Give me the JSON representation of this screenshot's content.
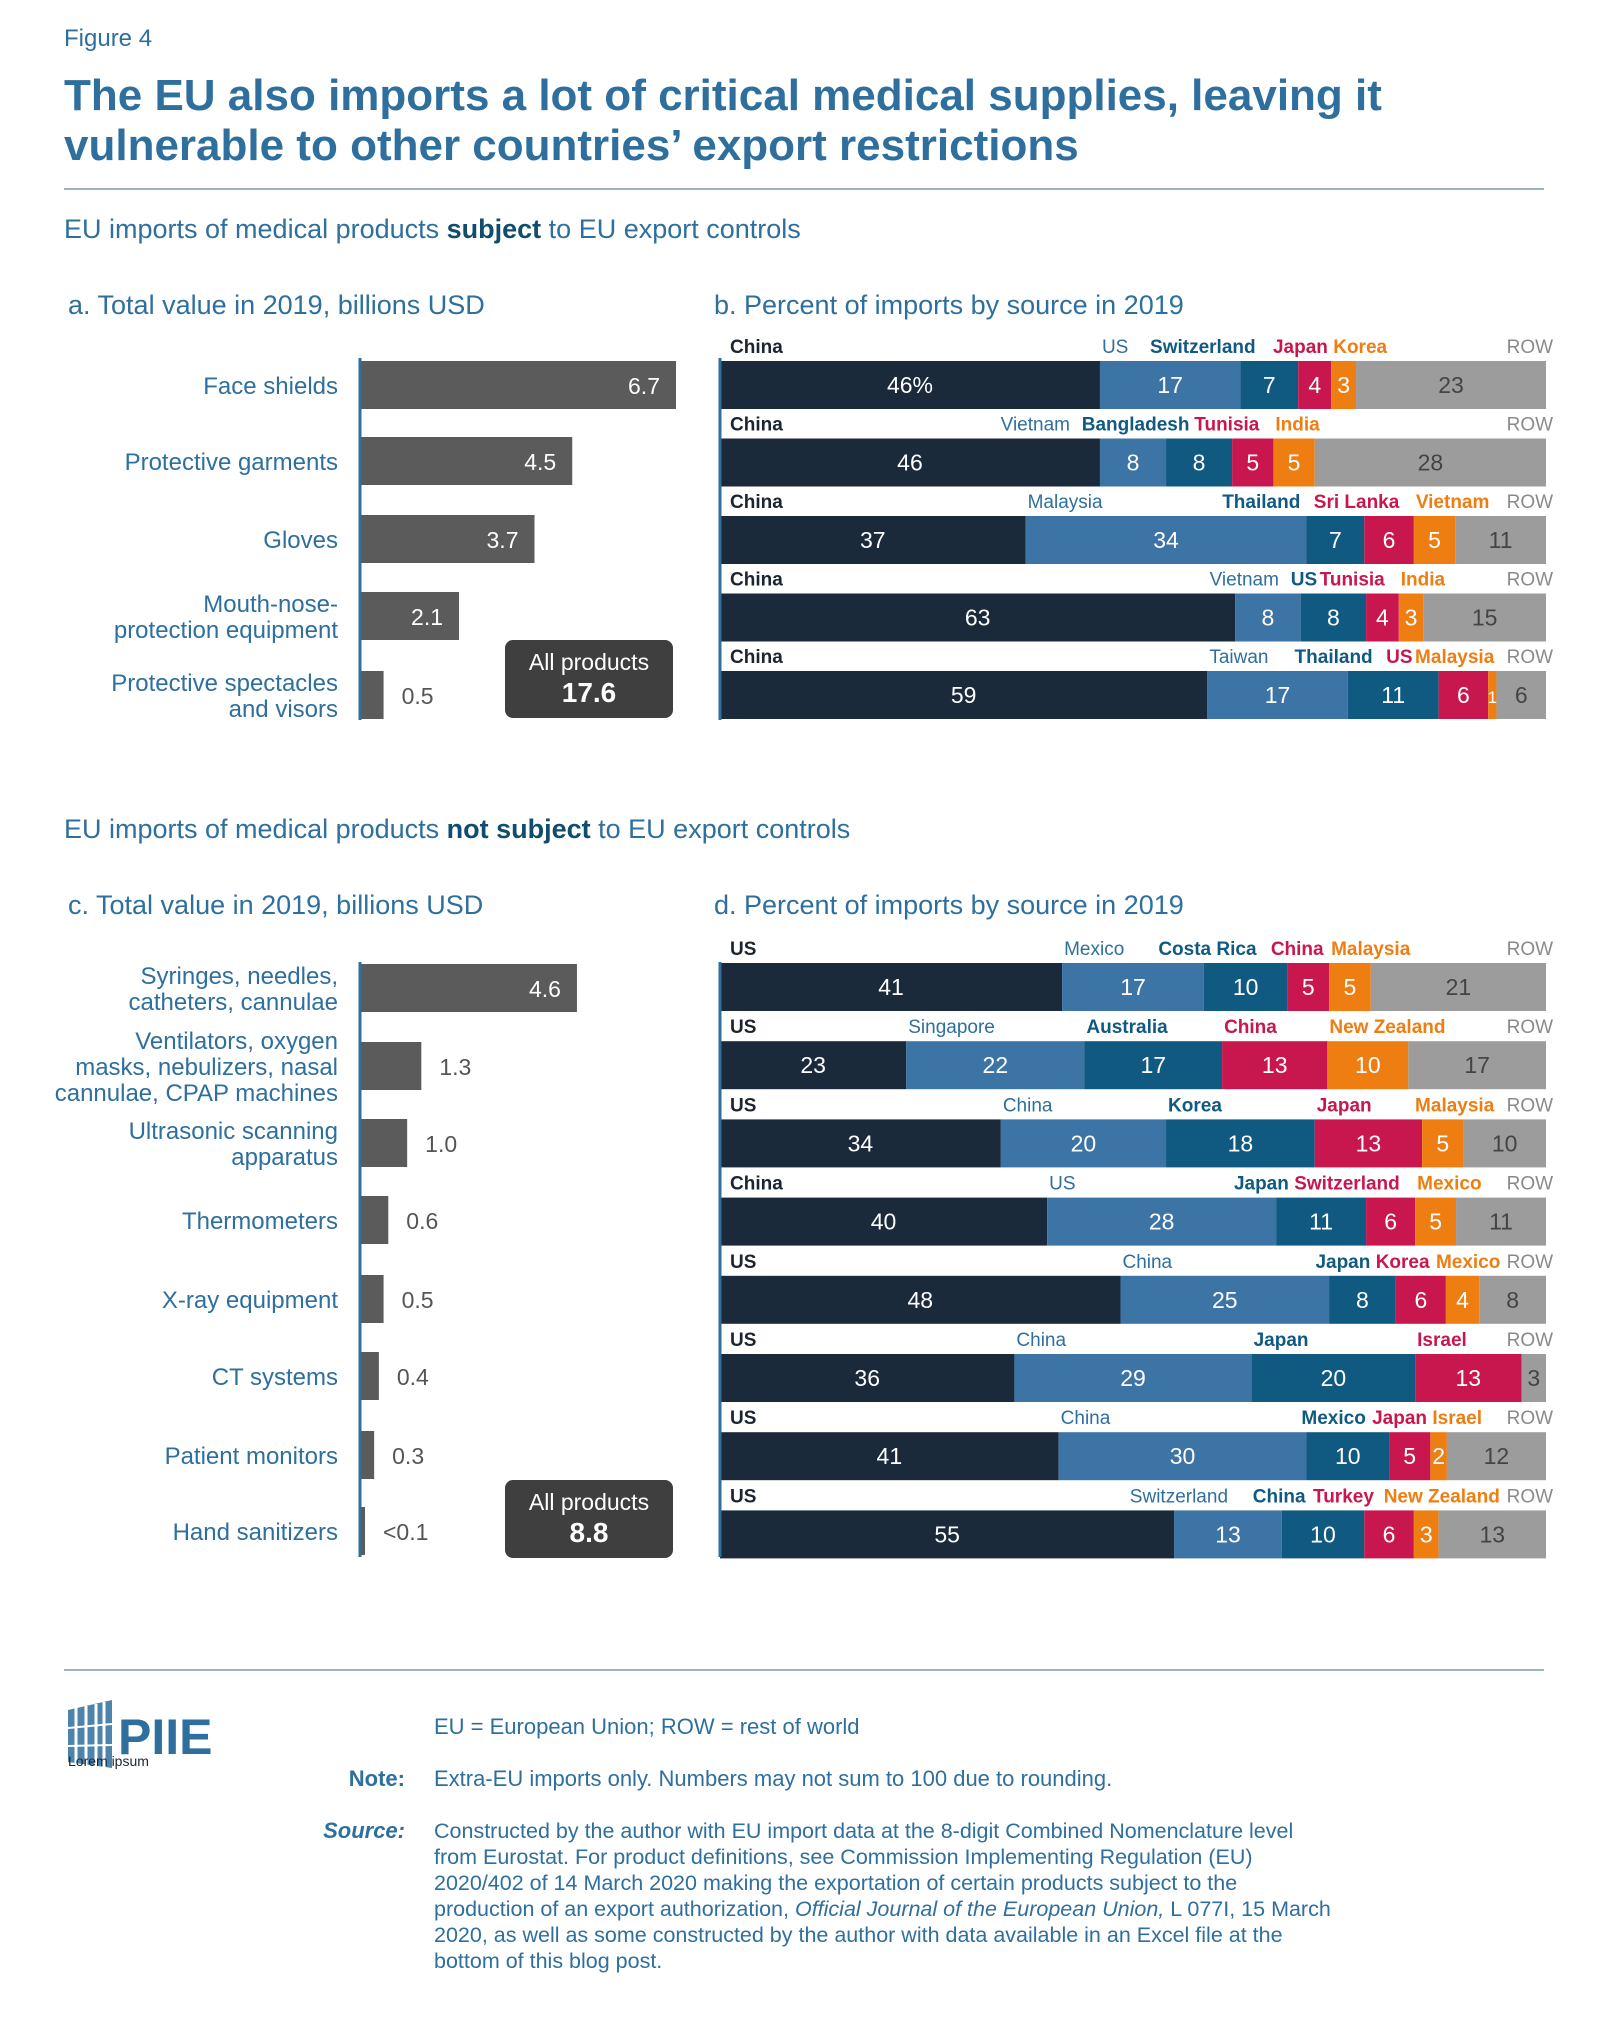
{
  "figure_label": "Figure 4",
  "title_line1": "The EU also imports a lot of critical medical supplies, leaving it",
  "title_line2": "vulnerable to other countries’ export restrictions",
  "colors": {
    "title": "#2e6f9e",
    "heading": "#2e6f9e",
    "bold_heading": "#0f4c6e",
    "bar_gray": "#5b5b5b",
    "total_box": "#3f3f3f",
    "axis": "#2e6f9e",
    "rule": "#9db3c6",
    "text_dark": "#1b2430",
    "grey_text": "#555555"
  },
  "segment_colors": [
    "#1b2a3a",
    "#3d74a6",
    "#105a82",
    "#c8174f",
    "#ee7e12",
    "#9c9c9c"
  ],
  "segment_label_colors": [
    "#1b2430",
    "#2e6f9e",
    "#105a82",
    "#c8174f",
    "#ee7e12",
    "#8a8a8a"
  ],
  "section1": {
    "heading_pre": "EU imports of medical products ",
    "heading_bold": "subject",
    "heading_post": " to EU export controls"
  },
  "section2": {
    "heading_pre": "EU imports of medical products ",
    "heading_bold": "not subject",
    "heading_post": " to EU export controls"
  },
  "logo": {
    "text": "PIIE",
    "tagline": "Lorem ipsum"
  },
  "notes": {
    "abbrev": "EU = European Union; ROW = rest of world",
    "note_label": "Note:",
    "note_text": "Extra-EU imports only. Numbers may not sum to 100 due to rounding.",
    "source_label": "Source:",
    "source_lines": [
      "Constructed by the author with EU import data at the 8-digit Combined Nomenclature level",
      "from Eurostat. For product definitions, see Commission Implementing Regulation (EU)",
      "2020/402 of 14 March 2020 making the exportation of certain products subject to the",
      "production of an export authorization, ",
      "2020, as well as some constructed by the author with data available in an Excel file at the",
      "bottom of this blog post."
    ],
    "source_italic": "Official Journal of the European Union,",
    "source_after_italic": " L 077I, 15 March"
  },
  "chart_data": [
    {
      "id": "a",
      "type": "bar",
      "orientation": "horizontal",
      "title": "a. Total value in 2019, billions USD",
      "categories": [
        [
          "Face shields"
        ],
        [
          "Protective garments"
        ],
        [
          "Gloves"
        ],
        [
          "Mouth-nose-",
          "protection equipment"
        ],
        [
          "Protective spectacles",
          "and visors"
        ]
      ],
      "values": [
        6.7,
        4.5,
        3.7,
        2.1,
        0.5
      ],
      "value_labels": [
        "6.7",
        "4.5",
        "3.7",
        "2.1",
        "0.5"
      ],
      "xlim": [
        0,
        6.7
      ],
      "total_label": "All products",
      "total_value": "17.6"
    },
    {
      "id": "b",
      "type": "bar",
      "orientation": "horizontal",
      "stacked": true,
      "title": "b. Percent of imports by source in 2019",
      "rows": [
        {
          "sources": [
            "China",
            "US",
            "Switzerland",
            "Japan",
            "Korea",
            "ROW"
          ],
          "values": [
            46,
            17,
            7,
            4,
            3,
            23
          ],
          "labels": [
            "46%",
            "17",
            "7",
            "4",
            "3",
            "23"
          ]
        },
        {
          "sources": [
            "China",
            "Vietnam",
            "Bangladesh",
            "Tunisia",
            "India",
            "ROW"
          ],
          "values": [
            46,
            8,
            8,
            5,
            5,
            28
          ],
          "labels": [
            "46",
            "8",
            "8",
            "5",
            "5",
            "28"
          ]
        },
        {
          "sources": [
            "China",
            "Malaysia",
            "Thailand",
            "Sri Lanka",
            "Vietnam",
            "ROW"
          ],
          "values": [
            37,
            34,
            7,
            6,
            5,
            11
          ],
          "labels": [
            "37",
            "34",
            "7",
            "6",
            "5",
            "11"
          ]
        },
        {
          "sources": [
            "China",
            "Vietnam",
            "US",
            "Tunisia",
            "India",
            "ROW"
          ],
          "values": [
            63,
            8,
            8,
            4,
            3,
            15
          ],
          "labels": [
            "63",
            "8",
            "8",
            "4",
            "3",
            "15"
          ]
        },
        {
          "sources": [
            "China",
            "Taiwan",
            "Thailand",
            "US",
            "Malaysia",
            "ROW"
          ],
          "values": [
            59,
            17,
            11,
            6,
            1,
            6
          ],
          "labels": [
            "59",
            "17",
            "11",
            "6",
            "1",
            "6"
          ]
        }
      ]
    },
    {
      "id": "c",
      "type": "bar",
      "orientation": "horizontal",
      "title": "c. Total value in 2019, billions USD",
      "categories": [
        [
          "Syringes, needles,",
          "catheters, cannulae"
        ],
        [
          "Ventilators, oxygen",
          "masks, nebulizers, nasal",
          "cannulae, CPAP machines"
        ],
        [
          "Ultrasonic scanning",
          "apparatus"
        ],
        [
          "Thermometers"
        ],
        [
          "X-ray equipment"
        ],
        [
          "CT systems"
        ],
        [
          "Patient monitors"
        ],
        [
          "Hand sanitizers"
        ]
      ],
      "values": [
        4.6,
        1.3,
        1.0,
        0.6,
        0.5,
        0.4,
        0.3,
        0.05
      ],
      "value_labels": [
        "4.6",
        "1.3",
        "1.0",
        "0.6",
        "0.5",
        "0.4",
        "0.3",
        "<0.1"
      ],
      "xlim": [
        0,
        6.7
      ],
      "total_label": "All products",
      "total_value": "8.8"
    },
    {
      "id": "d",
      "type": "bar",
      "orientation": "horizontal",
      "stacked": true,
      "title": "d. Percent of imports by source in 2019",
      "rows": [
        {
          "sources": [
            "US",
            "Mexico",
            "Costa Rica",
            "China",
            "Malaysia",
            "ROW"
          ],
          "values": [
            41,
            17,
            10,
            5,
            5,
            21
          ],
          "labels": [
            "41",
            "17",
            "10",
            "5",
            "5",
            "21"
          ]
        },
        {
          "sources": [
            "US",
            "Singapore",
            "Australia",
            "China",
            "New Zealand",
            "ROW"
          ],
          "values": [
            23,
            22,
            17,
            13,
            10,
            17
          ],
          "labels": [
            "23",
            "22",
            "17",
            "13",
            "10",
            "17"
          ]
        },
        {
          "sources": [
            "US",
            "China",
            "Korea",
            "Japan",
            "Malaysia",
            "ROW"
          ],
          "values": [
            34,
            20,
            18,
            13,
            5,
            10
          ],
          "labels": [
            "34",
            "20",
            "18",
            "13",
            "5",
            "10"
          ]
        },
        {
          "sources": [
            "China",
            "US",
            "Japan",
            "Switzerland",
            "Mexico",
            "ROW"
          ],
          "values": [
            40,
            28,
            11,
            6,
            5,
            11
          ],
          "labels": [
            "40",
            "28",
            "11",
            "6",
            "5",
            "11"
          ]
        },
        {
          "sources": [
            "US",
            "China",
            "Japan",
            "Korea",
            "Mexico",
            "ROW"
          ],
          "values": [
            48,
            25,
            8,
            6,
            4,
            8
          ],
          "labels": [
            "48",
            "25",
            "8",
            "6",
            "4",
            "8"
          ]
        },
        {
          "sources": [
            "US",
            "China",
            "Japan",
            "Israel",
            "ROW"
          ],
          "values": [
            36,
            29,
            20,
            13,
            3
          ],
          "labels": [
            "36",
            "29",
            "20",
            "13",
            "3"
          ],
          "colors_idx": [
            0,
            1,
            2,
            3,
            5
          ]
        },
        {
          "sources": [
            "US",
            "China",
            "Mexico",
            "Japan",
            "Israel",
            "ROW"
          ],
          "values": [
            41,
            30,
            10,
            5,
            2,
            12
          ],
          "labels": [
            "41",
            "30",
            "10",
            "5",
            "2",
            "12"
          ]
        },
        {
          "sources": [
            "US",
            "Switzerland",
            "China",
            "Turkey",
            "New Zealand",
            "ROW"
          ],
          "values": [
            55,
            13,
            10,
            6,
            3,
            13
          ],
          "labels": [
            "55",
            "13",
            "10",
            "6",
            "3",
            "13"
          ]
        }
      ]
    }
  ]
}
